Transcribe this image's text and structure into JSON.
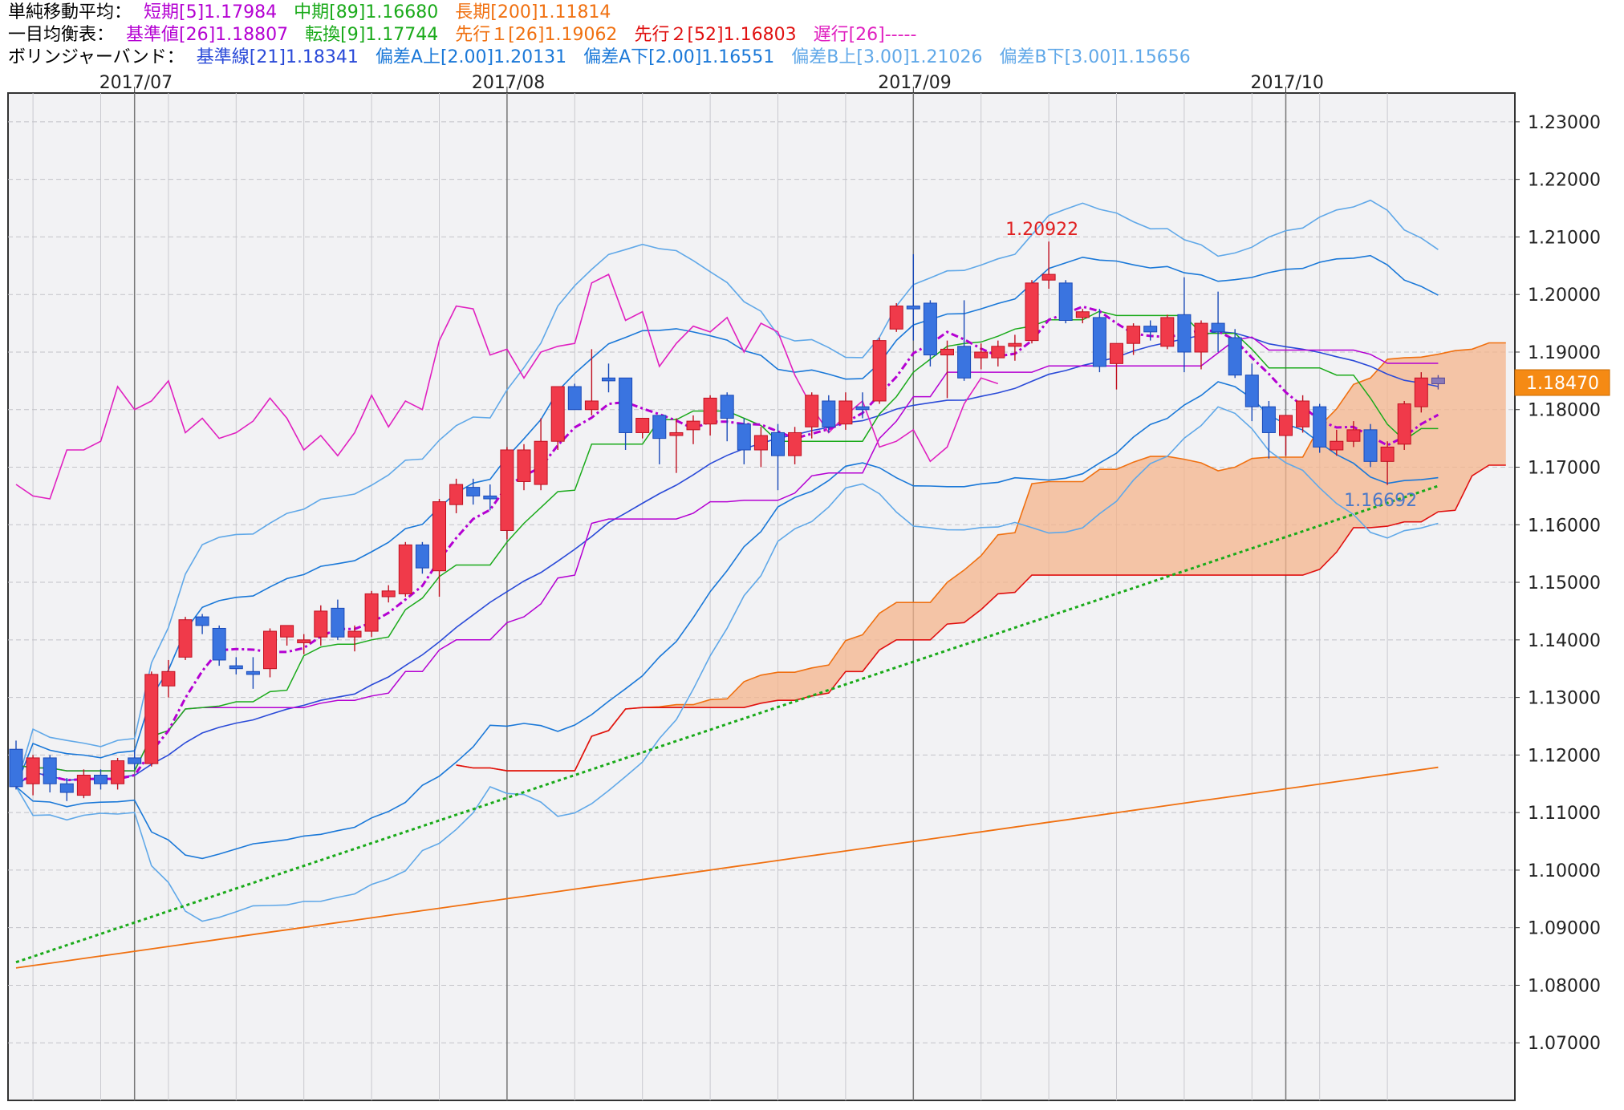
{
  "legend": {
    "sma": {
      "label": "単純移動平均：",
      "items": [
        {
          "text": "短期[5]1.17984",
          "color": "#b400d2"
        },
        {
          "text": "中期[89]1.16680",
          "color": "#1aaa1a"
        },
        {
          "text": "長期[200]1.11814",
          "color": "#f07010"
        }
      ]
    },
    "ichimoku": {
      "label": "一目均衡表：",
      "items": [
        {
          "text": "基準値[26]1.18807",
          "color": "#b400d2"
        },
        {
          "text": "転換[9]1.17744",
          "color": "#1aaa1a"
        },
        {
          "text": "先行１[26]1.19062",
          "color": "#f07010"
        },
        {
          "text": "先行２[52]1.16803",
          "color": "#e01010"
        },
        {
          "text": "遅行[26]-----",
          "color": "#e020c0"
        }
      ]
    },
    "bollinger": {
      "label": "ボリンジャーバンド：",
      "items": [
        {
          "text": "基準線[21]1.18341",
          "color": "#2a4ad8"
        },
        {
          "text": "偏差A上[2.00]1.20131",
          "color": "#1a78d8"
        },
        {
          "text": "偏差A下[2.00]1.16551",
          "color": "#1a78d8"
        },
        {
          "text": "偏差B上[3.00]1.21026",
          "color": "#60a8e8"
        },
        {
          "text": "偏差B下[3.00]1.15656",
          "color": "#60a8e8"
        }
      ]
    }
  },
  "chart_data": {
    "type": "candlestick",
    "x_labels": [
      "2017/07",
      "2017/08",
      "2017/09",
      "2017/10"
    ],
    "ylim": [
      1.06,
      1.235
    ],
    "y_ticks": [
      "1.07000",
      "1.08000",
      "1.09000",
      "1.10000",
      "1.11000",
      "1.12000",
      "1.13000",
      "1.14000",
      "1.15000",
      "1.16000",
      "1.17000",
      "1.18000",
      "1.19000",
      "1.20000",
      "1.21000",
      "1.22000",
      "1.23000"
    ],
    "current_price": "1.18470",
    "annotations": {
      "high": "1.20922",
      "low": "1.16692"
    },
    "candles": [
      [
        1.121,
        1.1225,
        1.114,
        1.1145
      ],
      [
        1.115,
        1.12,
        1.113,
        1.1195
      ],
      [
        1.1195,
        1.12,
        1.1135,
        1.115
      ],
      [
        1.115,
        1.116,
        1.112,
        1.1135
      ],
      [
        1.113,
        1.1175,
        1.1125,
        1.1165
      ],
      [
        1.1165,
        1.1175,
        1.114,
        1.115
      ],
      [
        1.115,
        1.1195,
        1.114,
        1.119
      ],
      [
        1.1195,
        1.121,
        1.1175,
        1.1185
      ],
      [
        1.1185,
        1.1345,
        1.118,
        1.134
      ],
      [
        1.132,
        1.1365,
        1.13,
        1.1345
      ],
      [
        1.137,
        1.144,
        1.1365,
        1.1435
      ],
      [
        1.144,
        1.1445,
        1.141,
        1.1425
      ],
      [
        1.142,
        1.1425,
        1.1355,
        1.1365
      ],
      [
        1.1355,
        1.137,
        1.134,
        1.135
      ],
      [
        1.1345,
        1.137,
        1.1315,
        1.134
      ],
      [
        1.135,
        1.142,
        1.1335,
        1.1415
      ],
      [
        1.1405,
        1.1425,
        1.139,
        1.1425
      ],
      [
        1.1395,
        1.141,
        1.1375,
        1.14
      ],
      [
        1.1405,
        1.146,
        1.139,
        1.145
      ],
      [
        1.1455,
        1.147,
        1.14,
        1.1405
      ],
      [
        1.1405,
        1.1425,
        1.138,
        1.1415
      ],
      [
        1.1415,
        1.1485,
        1.1405,
        1.148
      ],
      [
        1.1475,
        1.1495,
        1.1465,
        1.1485
      ],
      [
        1.148,
        1.157,
        1.1475,
        1.1565
      ],
      [
        1.1565,
        1.157,
        1.1515,
        1.1525
      ],
      [
        1.152,
        1.1645,
        1.1475,
        1.164
      ],
      [
        1.1635,
        1.168,
        1.162,
        1.167
      ],
      [
        1.1665,
        1.168,
        1.1635,
        1.165
      ],
      [
        1.165,
        1.167,
        1.1625,
        1.1645
      ],
      [
        1.159,
        1.1735,
        1.1575,
        1.173
      ],
      [
        1.1675,
        1.174,
        1.166,
        1.173
      ],
      [
        1.167,
        1.1785,
        1.166,
        1.1745
      ],
      [
        1.1745,
        1.184,
        1.173,
        1.184
      ],
      [
        1.184,
        1.1845,
        1.18,
        1.18
      ],
      [
        1.18,
        1.1905,
        1.179,
        1.1815
      ],
      [
        1.1855,
        1.188,
        1.183,
        1.185
      ],
      [
        1.1855,
        1.1855,
        1.173,
        1.176
      ],
      [
        1.176,
        1.178,
        1.175,
        1.1785
      ],
      [
        1.179,
        1.179,
        1.1705,
        1.175
      ],
      [
        1.1755,
        1.1785,
        1.169,
        1.176
      ],
      [
        1.1765,
        1.179,
        1.174,
        1.178
      ],
      [
        1.1775,
        1.1825,
        1.1755,
        1.182
      ],
      [
        1.1825,
        1.183,
        1.1745,
        1.1785
      ],
      [
        1.1775,
        1.1785,
        1.1705,
        1.173
      ],
      [
        1.173,
        1.177,
        1.17,
        1.1755
      ],
      [
        1.176,
        1.1775,
        1.166,
        1.172
      ],
      [
        1.172,
        1.177,
        1.1705,
        1.176
      ],
      [
        1.177,
        1.183,
        1.175,
        1.1825
      ],
      [
        1.1815,
        1.1825,
        1.176,
        1.177
      ],
      [
        1.1775,
        1.183,
        1.1765,
        1.1815
      ],
      [
        1.1805,
        1.183,
        1.1785,
        1.18
      ],
      [
        1.1815,
        1.1925,
        1.181,
        1.192
      ],
      [
        1.194,
        1.1985,
        1.1935,
        1.198
      ],
      [
        1.198,
        1.207,
        1.192,
        1.1975
      ],
      [
        1.1985,
        1.199,
        1.1875,
        1.1895
      ],
      [
        1.1895,
        1.192,
        1.182,
        1.1905
      ],
      [
        1.191,
        1.199,
        1.185,
        1.1855
      ],
      [
        1.189,
        1.1915,
        1.187,
        1.19
      ],
      [
        1.189,
        1.192,
        1.1875,
        1.191
      ],
      [
        1.191,
        1.193,
        1.1885,
        1.1915
      ],
      [
        1.192,
        1.2025,
        1.1915,
        1.202
      ],
      [
        1.2025,
        1.2092,
        1.201,
        1.2035
      ],
      [
        1.202,
        1.2025,
        1.195,
        1.1955
      ],
      [
        1.196,
        1.1975,
        1.195,
        1.197
      ],
      [
        1.196,
        1.1975,
        1.1865,
        1.1875
      ],
      [
        1.188,
        1.1915,
        1.1835,
        1.1915
      ],
      [
        1.1915,
        1.195,
        1.1895,
        1.1945
      ],
      [
        1.1945,
        1.1955,
        1.192,
        1.1935
      ],
      [
        1.191,
        1.1965,
        1.1905,
        1.196
      ],
      [
        1.1965,
        1.203,
        1.1865,
        1.19
      ],
      [
        1.19,
        1.1955,
        1.187,
        1.195
      ],
      [
        1.195,
        1.2005,
        1.19,
        1.1935
      ],
      [
        1.1925,
        1.194,
        1.1855,
        1.186
      ],
      [
        1.186,
        1.188,
        1.178,
        1.1805
      ],
      [
        1.1805,
        1.1815,
        1.1715,
        1.176
      ],
      [
        1.1755,
        1.1775,
        1.172,
        1.179
      ],
      [
        1.177,
        1.1825,
        1.176,
        1.1815
      ],
      [
        1.1805,
        1.181,
        1.1725,
        1.1735
      ],
      [
        1.173,
        1.1765,
        1.172,
        1.1745
      ],
      [
        1.1745,
        1.178,
        1.1735,
        1.1765
      ],
      [
        1.1765,
        1.1775,
        1.17,
        1.171
      ],
      [
        1.171,
        1.1745,
        1.1669,
        1.1735
      ],
      [
        1.174,
        1.1815,
        1.173,
        1.181
      ],
      [
        1.1805,
        1.1865,
        1.1795,
        1.1855
      ],
      [
        1.1855,
        1.186,
        1.1835,
        1.1845
      ]
    ]
  }
}
